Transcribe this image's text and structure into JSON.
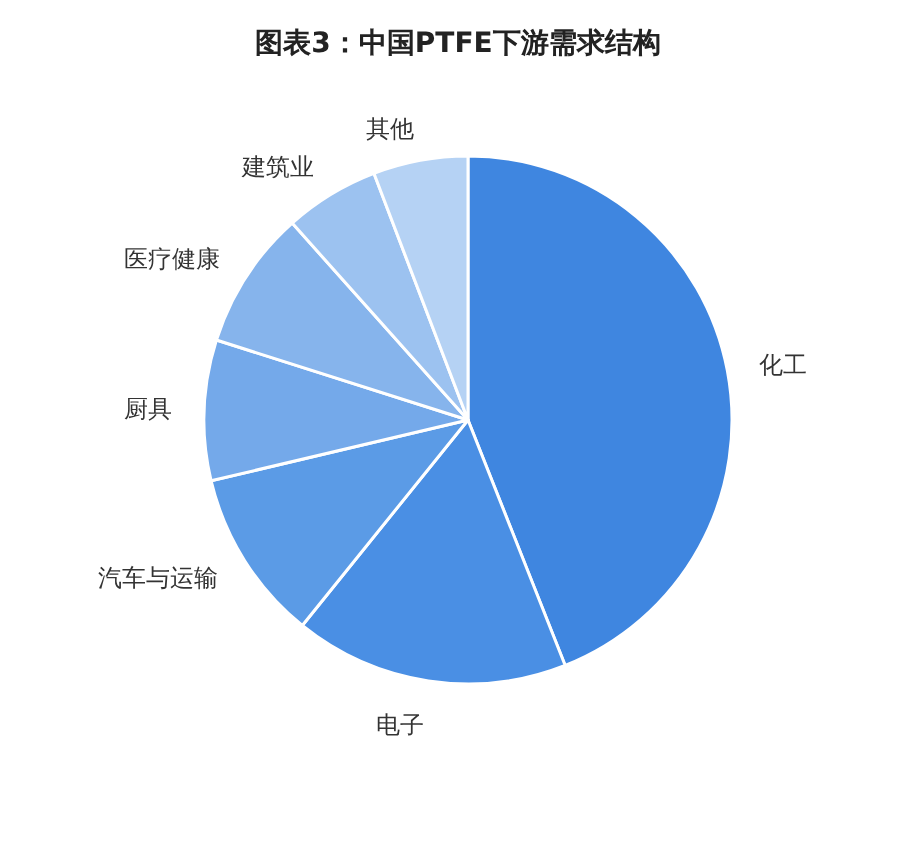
{
  "chart_data": {
    "type": "pie",
    "title": "图表3：中国PTFE下游需求结构",
    "categories": [
      "化工",
      "电子",
      "汽车与运输",
      "厨具",
      "医疗健康",
      "建筑业",
      "其他"
    ],
    "values": [
      44,
      16.8,
      10.5,
      8.6,
      8.5,
      5.8,
      5.8
    ],
    "colors": [
      "#3f86e0",
      "#4a8fe4",
      "#5b9be6",
      "#74a9ea",
      "#86b4ec",
      "#9cc2f0",
      "#b5d2f4"
    ]
  }
}
